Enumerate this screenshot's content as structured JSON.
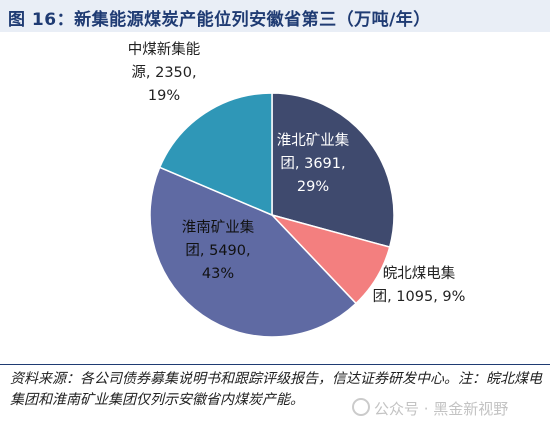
{
  "title": "图 16：新集能源煤炭产能位列安徽省第三（万吨/年）",
  "chart_data": {
    "type": "pie",
    "title": "图 16：新集能源煤炭产能位列安徽省第三（万吨/年）",
    "unit": "万吨/年",
    "slices": [
      {
        "name": "淮北矿业集团",
        "value": 3691,
        "percent": "29%",
        "color": "#3f4a6e",
        "label_lines": [
          "淮北矿业集",
          "团, 3691,",
          "29%"
        ],
        "label_color": "#ffffff"
      },
      {
        "name": "皖北煤电集团",
        "value": 1095,
        "percent": "9%",
        "color": "#f37f7f",
        "label_lines": [
          "皖北煤电集",
          "团, 1095, 9%"
        ],
        "label_color": "#222222"
      },
      {
        "name": "淮南矿业集团",
        "value": 5490,
        "percent": "43%",
        "color": "#5f6aa3",
        "label_lines": [
          "淮南矿业集",
          "团, 5490,",
          "43%"
        ],
        "label_color": "#111111"
      },
      {
        "name": "中煤新集能源",
        "value": 2350,
        "percent": "19%",
        "color": "#2f97b7",
        "label_lines": [
          "中煤新集能",
          "源, 2350,",
          "19%"
        ],
        "label_color": "#222222"
      }
    ]
  },
  "source": "资料来源：各公司债券募集说明书和跟踪评级报告，信达证券研发中心。注：皖北煤电集团和淮南矿业集团仅列示安徽省内煤炭产能。",
  "watermark": "公众号 · 黑金新视野"
}
